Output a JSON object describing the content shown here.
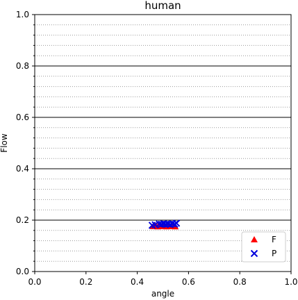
{
  "chart_data": {
    "type": "scatter",
    "title": "human",
    "xlabel": "angle",
    "ylabel": "Flow",
    "xlim": [
      0.0,
      1.0
    ],
    "ylim": [
      0.0,
      1.0
    ],
    "x_ticks": [
      "0.0",
      "0.2",
      "0.4",
      "0.6",
      "0.8",
      "1.0"
    ],
    "y_ticks": [
      "0.0",
      "0.2",
      "0.4",
      "0.6",
      "0.8",
      "1.0"
    ],
    "grid": {
      "major_y": "solid",
      "minor_y": "dotted",
      "x": "off"
    },
    "legend_position": "bottom-right",
    "series": [
      {
        "name": "F",
        "marker": "triangle",
        "color": "#ff0000",
        "points": [
          [
            0.462,
            0.176
          ],
          [
            0.472,
            0.178
          ],
          [
            0.48,
            0.175
          ],
          [
            0.488,
            0.177
          ],
          [
            0.496,
            0.176
          ],
          [
            0.505,
            0.178
          ],
          [
            0.514,
            0.175
          ],
          [
            0.522,
            0.177
          ],
          [
            0.531,
            0.176
          ],
          [
            0.54,
            0.178
          ],
          [
            0.548,
            0.175
          ]
        ]
      },
      {
        "name": "P",
        "marker": "x",
        "color": "#0000dd",
        "points": [
          [
            0.458,
            0.18
          ],
          [
            0.47,
            0.182
          ],
          [
            0.486,
            0.185
          ],
          [
            0.495,
            0.184
          ],
          [
            0.503,
            0.186
          ],
          [
            0.511,
            0.184
          ],
          [
            0.52,
            0.185
          ],
          [
            0.529,
            0.183
          ],
          [
            0.537,
            0.186
          ],
          [
            0.546,
            0.184
          ],
          [
            0.553,
            0.188
          ]
        ]
      }
    ]
  }
}
